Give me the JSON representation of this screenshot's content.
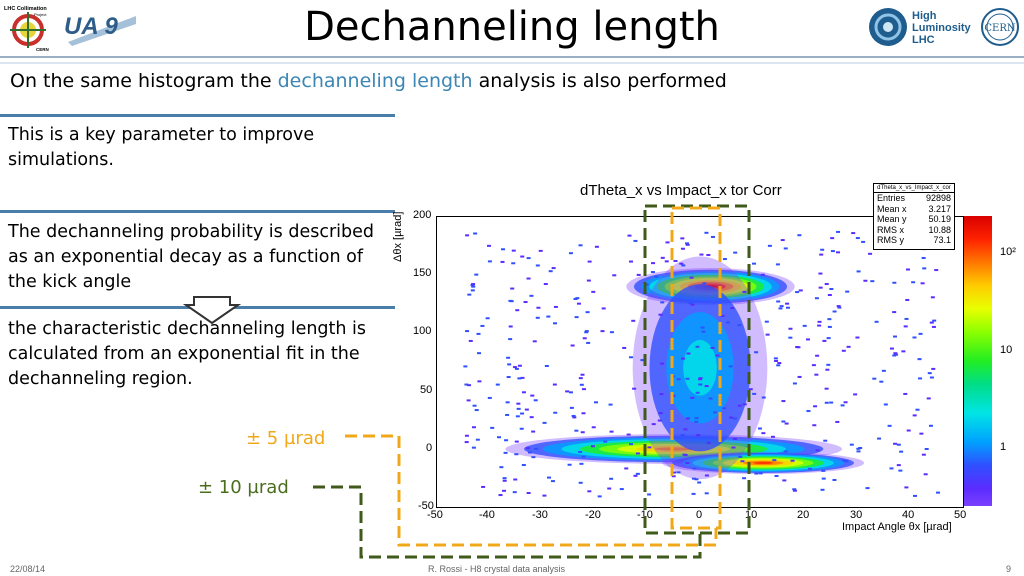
{
  "header": {
    "title": "Dechanneling length",
    "logo_lhc_text": "LHC Collimation",
    "logo_lhc_sub": "Project",
    "logo_lhc_cern": "CERN",
    "logo_ua9": "UA 9",
    "logo_hl_line1": "High",
    "logo_hl_line2": "Luminosity",
    "logo_hl_line3": "LHC",
    "logo_cern": "CERN"
  },
  "subtitle": {
    "before": "On the same histogram the ",
    "highlight": "dechanneling length",
    "after": " analysis is also performed"
  },
  "paragraphs": {
    "p1": "This is a key parameter to improve simulations.",
    "p2": "The dechanneling probability is described as an exponential decay as a function of the kick angle",
    "p3": "the characteristic dechanneling length is calculated from an exponential fit in the dechanneling region."
  },
  "annotations": {
    "five": "± 5 µrad",
    "ten": "± 10 µrad",
    "five_color": "#f0a818",
    "ten_color": "#4a6d1e"
  },
  "plot": {
    "title": "dTheta_x vs Impact_x tor Corr",
    "ylabel": "Δθx [µrad]",
    "xlabel": "Impact Angle θx [µrad]",
    "xticks": [
      "-50",
      "-40",
      "-30",
      "-20",
      "-10",
      "0",
      "10",
      "20",
      "30",
      "40",
      "50"
    ],
    "yticks": [
      "200",
      "150",
      "100",
      "50",
      "0",
      "-50"
    ],
    "stats": {
      "name": "dTheta_x_vs_Impact_x_cor",
      "rows": [
        {
          "k": "Entries",
          "v": "92898"
        },
        {
          "k": "Mean x",
          "v": "3.217"
        },
        {
          "k": "Mean y",
          "v": "50.19"
        },
        {
          "k": "RMS x",
          "v": "10.88"
        },
        {
          "k": "RMS y",
          "v": "73.1"
        }
      ]
    },
    "colorbar": [
      "10²",
      "10",
      "1"
    ]
  },
  "chart_data": {
    "type": "heatmap",
    "title": "dTheta_x vs Impact_x tor Corr",
    "xlabel": "Impact Angle θx [µrad]",
    "ylabel": "Δθx [µrad]",
    "xlim": [
      -50,
      50
    ],
    "ylim": [
      -50,
      200
    ],
    "z_scale": "log",
    "clusters": [
      {
        "x": 2,
        "y": 140,
        "rx": 10,
        "ry": 10,
        "level": 1.0
      },
      {
        "x": -5,
        "y": 0,
        "rx": 20,
        "ry": 8,
        "level": 0.85
      },
      {
        "x": 12,
        "y": -12,
        "rx": 12,
        "ry": 6,
        "level": 0.9
      },
      {
        "x": 0,
        "y": 70,
        "rx": 8,
        "ry": 60,
        "level": 0.35
      }
    ]
  },
  "footer": {
    "date": "22/08/14",
    "center": "R. Rossi - H8 crystal data analysis",
    "page": "9"
  }
}
